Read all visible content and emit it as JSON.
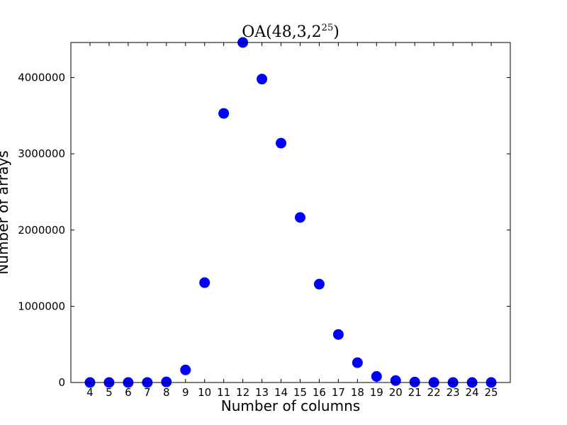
{
  "chart_data": {
    "type": "scatter",
    "title": {
      "prefix": "OA(48,3,2",
      "superscript": "25",
      "suffix": ")"
    },
    "xlabel": "Number of columns",
    "ylabel": "Number of arrays",
    "x": [
      4,
      5,
      6,
      7,
      8,
      9,
      10,
      11,
      12,
      13,
      14,
      15,
      16,
      17,
      18,
      19,
      20,
      21,
      22,
      23,
      24,
      25
    ],
    "y": [
      0,
      0,
      0,
      200,
      8000,
      165000,
      1310000,
      3530000,
      4460000,
      3980000,
      3140000,
      2165000,
      1290000,
      630000,
      260000,
      80000,
      25000,
      6000,
      1500,
      300,
      50,
      0
    ],
    "xlim": [
      3,
      26
    ],
    "ylim": [
      0,
      4460000
    ],
    "yticks": [
      0,
      1000000,
      2000000,
      3000000,
      4000000
    ],
    "ytick_labels": [
      "0",
      "1000000",
      "2000000",
      "3000000",
      "4000000"
    ],
    "xticks": [
      4,
      5,
      6,
      7,
      8,
      9,
      10,
      11,
      12,
      13,
      14,
      15,
      16,
      17,
      18,
      19,
      20,
      21,
      22,
      23,
      24,
      25
    ],
    "xtick_labels": [
      "4",
      "5",
      "6",
      "7",
      "8",
      "9",
      "10",
      "11",
      "12",
      "13",
      "14",
      "15",
      "16",
      "17",
      "18",
      "19",
      "20",
      "21",
      "22",
      "23",
      "24",
      "25"
    ],
    "grid": false,
    "marker_color": "#0000ff"
  }
}
